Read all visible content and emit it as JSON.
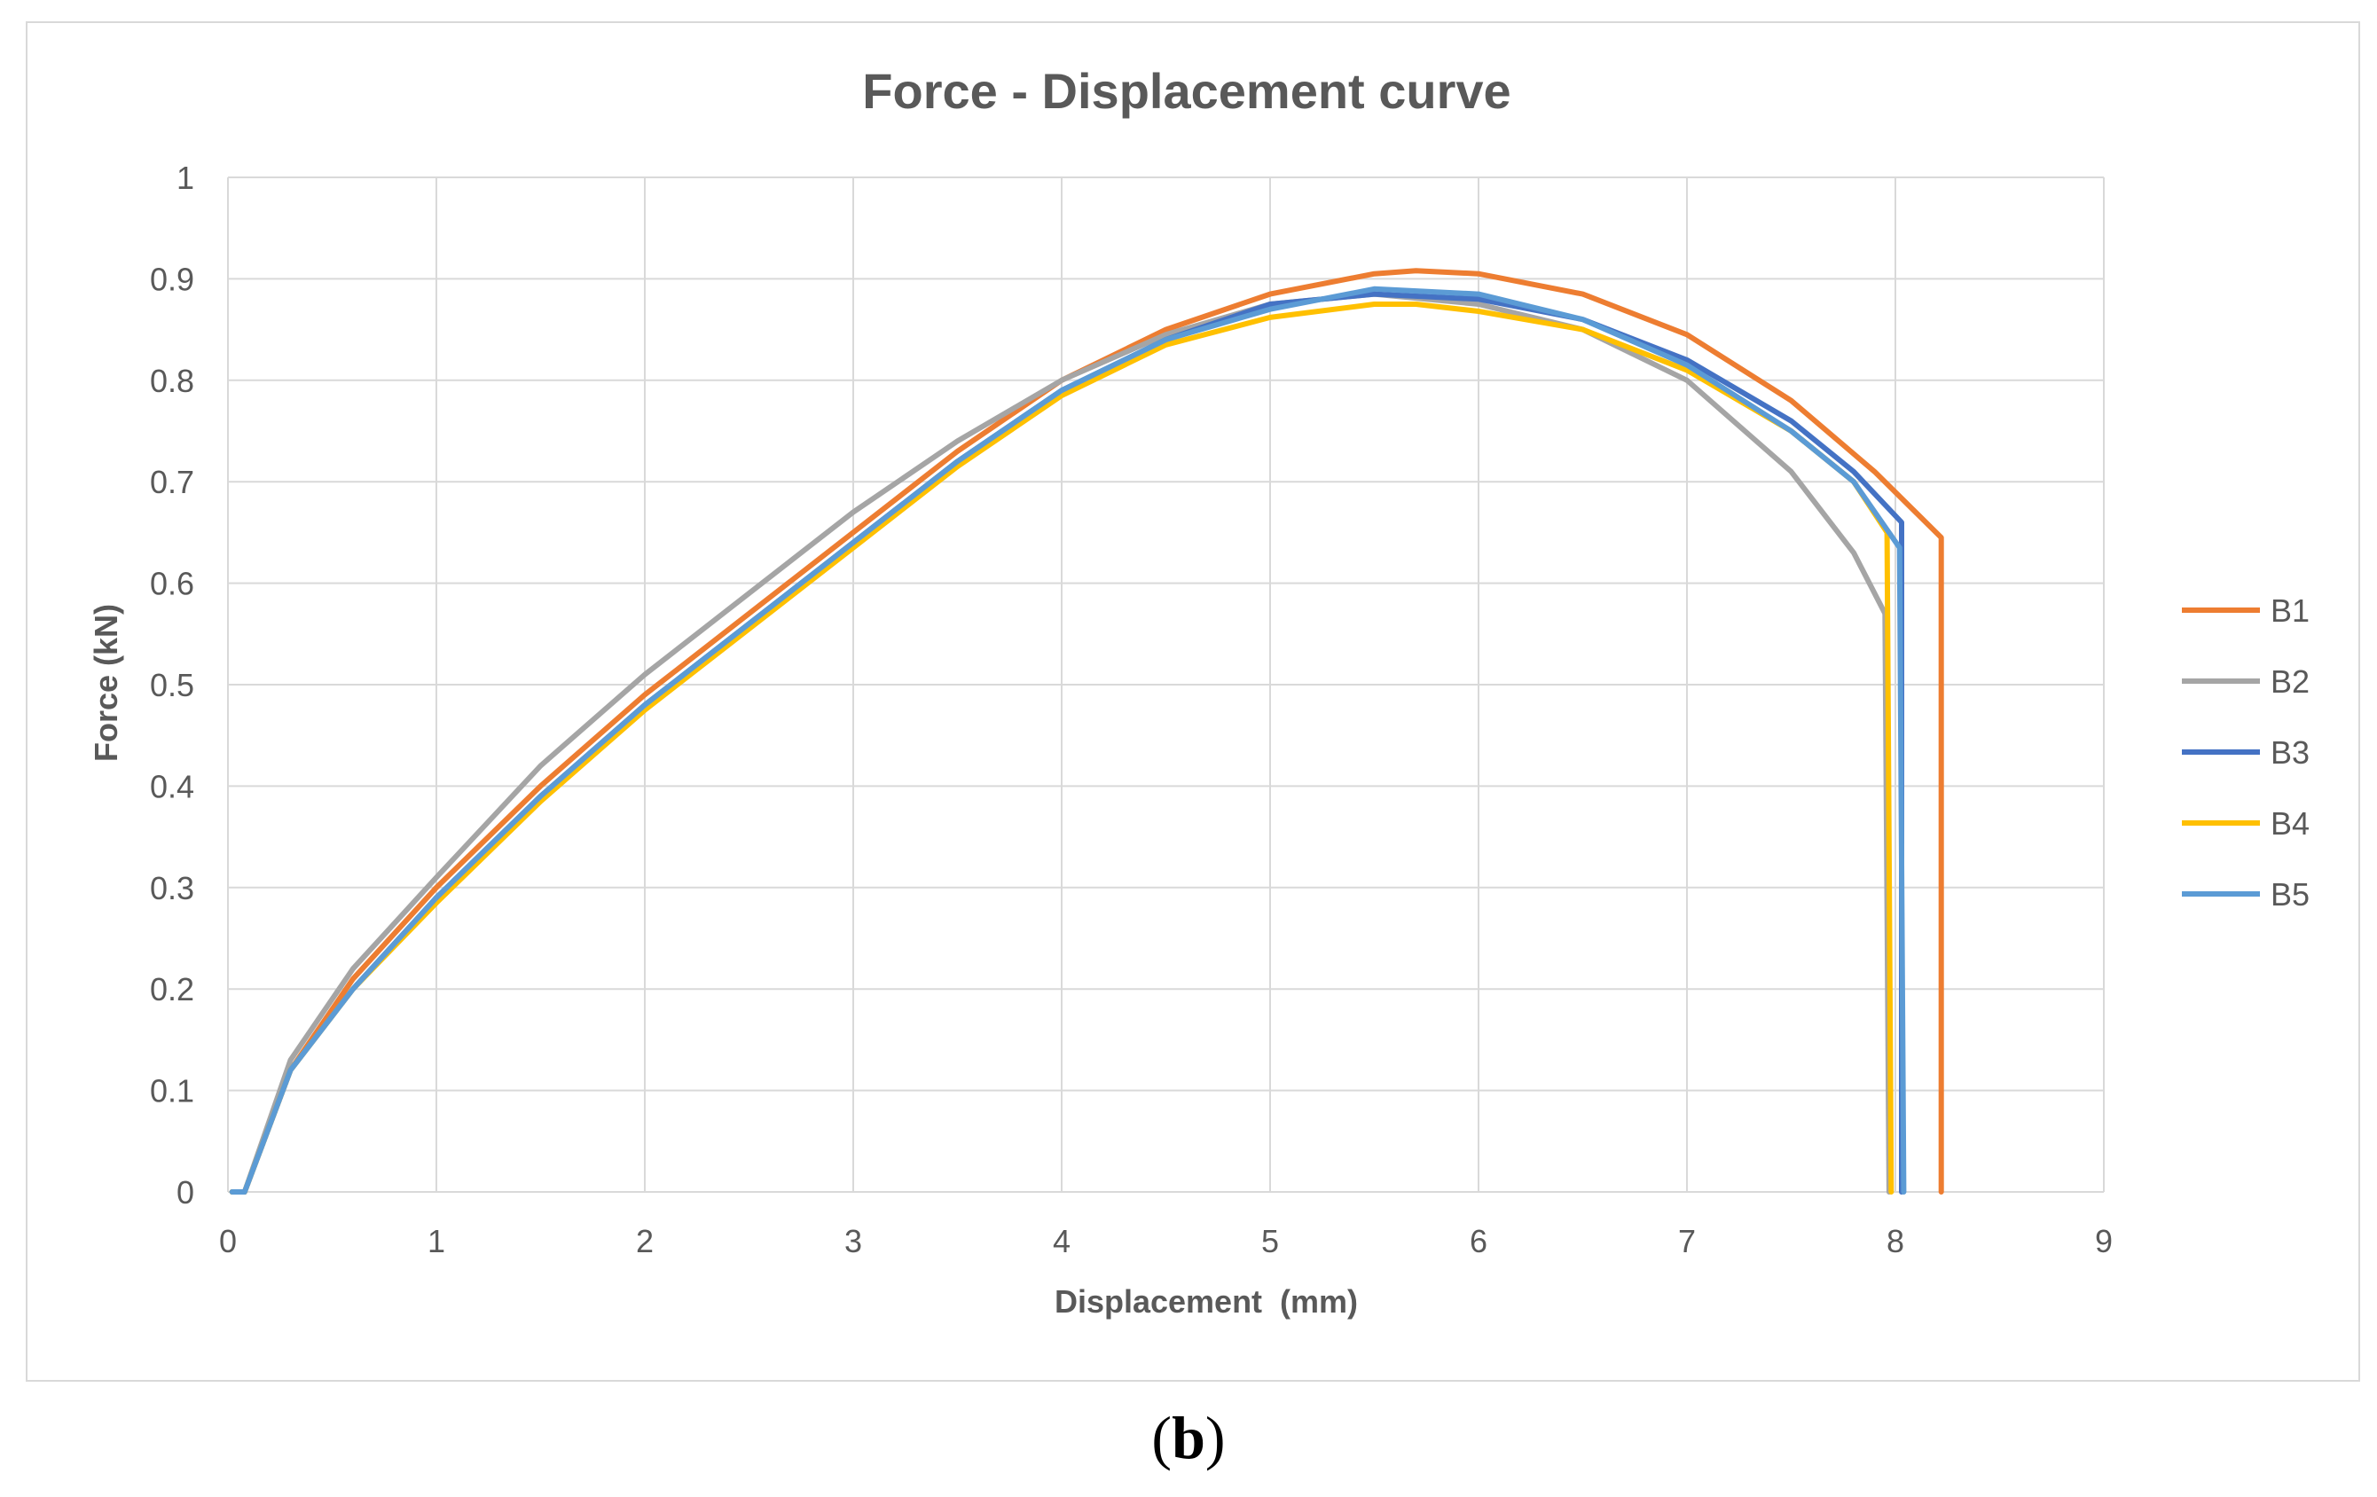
{
  "caption": {
    "open": "(",
    "letter": "b",
    "close": ")"
  },
  "chart_data": {
    "type": "line",
    "title": "Force - Displacement curve",
    "xlabel": "Displacement  (mm)",
    "ylabel": "Force (kN)",
    "xlim": [
      0,
      9
    ],
    "ylim": [
      0,
      1
    ],
    "xticks": [
      "0",
      "1",
      "2",
      "3",
      "4",
      "5",
      "6",
      "7",
      "8",
      "9"
    ],
    "yticks": [
      "0",
      "0.1",
      "0.2",
      "0.3",
      "0.4",
      "0.5",
      "0.6",
      "0.7",
      "0.8",
      "0.9",
      "1"
    ],
    "grid": true,
    "legend_position": "right",
    "series": [
      {
        "name": "B1",
        "color": "#ed7d31",
        "x": [
          0.02,
          0.08,
          0.3,
          0.6,
          1.0,
          1.5,
          2.0,
          2.5,
          3.0,
          3.5,
          4.0,
          4.5,
          5.0,
          5.5,
          5.7,
          6.0,
          6.5,
          7.0,
          7.5,
          7.9,
          8.22,
          8.22
        ],
        "y": [
          0,
          0,
          0.12,
          0.21,
          0.3,
          0.4,
          0.49,
          0.57,
          0.65,
          0.73,
          0.8,
          0.85,
          0.885,
          0.905,
          0.908,
          0.905,
          0.885,
          0.845,
          0.78,
          0.71,
          0.645,
          0
        ]
      },
      {
        "name": "B2",
        "color": "#a5a5a5",
        "x": [
          0.02,
          0.08,
          0.3,
          0.6,
          1.0,
          1.5,
          2.0,
          2.5,
          3.0,
          3.5,
          4.0,
          4.5,
          5.0,
          5.5,
          6.0,
          6.5,
          7.0,
          7.5,
          7.8,
          7.95,
          7.97
        ],
        "y": [
          0,
          0,
          0.13,
          0.22,
          0.31,
          0.42,
          0.51,
          0.59,
          0.67,
          0.74,
          0.8,
          0.845,
          0.875,
          0.885,
          0.875,
          0.85,
          0.8,
          0.71,
          0.63,
          0.57,
          0
        ]
      },
      {
        "name": "B3",
        "color": "#4472c4",
        "x": [
          0.02,
          0.08,
          0.3,
          0.6,
          1.0,
          1.5,
          2.0,
          2.5,
          3.0,
          3.5,
          4.0,
          4.5,
          5.0,
          5.5,
          6.0,
          6.5,
          7.0,
          7.5,
          7.8,
          8.03,
          8.03
        ],
        "y": [
          0,
          0,
          0.12,
          0.2,
          0.29,
          0.39,
          0.48,
          0.56,
          0.64,
          0.72,
          0.79,
          0.84,
          0.875,
          0.885,
          0.88,
          0.86,
          0.82,
          0.76,
          0.71,
          0.66,
          0
        ]
      },
      {
        "name": "B4",
        "color": "#ffc000",
        "x": [
          0.02,
          0.08,
          0.3,
          0.6,
          1.0,
          1.5,
          2.0,
          2.5,
          3.0,
          3.5,
          4.0,
          4.5,
          5.0,
          5.5,
          5.7,
          6.0,
          6.5,
          7.0,
          7.5,
          7.8,
          7.96,
          7.98
        ],
        "y": [
          0,
          0,
          0.12,
          0.2,
          0.285,
          0.385,
          0.475,
          0.555,
          0.635,
          0.715,
          0.785,
          0.835,
          0.862,
          0.875,
          0.875,
          0.868,
          0.85,
          0.81,
          0.75,
          0.7,
          0.65,
          0
        ]
      },
      {
        "name": "B5",
        "color": "#5b9bd5",
        "x": [
          0.02,
          0.08,
          0.3,
          0.6,
          1.0,
          1.5,
          2.0,
          2.5,
          3.0,
          3.5,
          4.0,
          4.5,
          5.0,
          5.5,
          6.0,
          6.5,
          7.0,
          7.5,
          7.8,
          8.02,
          8.04
        ],
        "y": [
          0,
          0,
          0.12,
          0.2,
          0.29,
          0.39,
          0.48,
          0.56,
          0.64,
          0.72,
          0.79,
          0.84,
          0.87,
          0.89,
          0.885,
          0.86,
          0.815,
          0.75,
          0.7,
          0.635,
          0
        ]
      }
    ]
  }
}
